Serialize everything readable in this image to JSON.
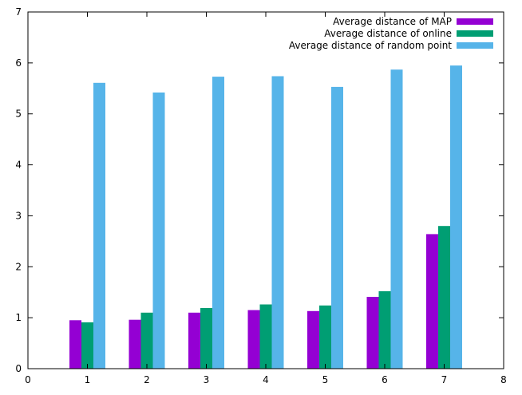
{
  "chart_data": {
    "type": "bar",
    "title": "",
    "xlabel": "",
    "ylabel": "",
    "x": [
      1,
      2,
      3,
      4,
      5,
      6,
      7
    ],
    "xlim": [
      0,
      8
    ],
    "ylim": [
      0,
      7
    ],
    "xticks": [
      "0",
      "1",
      "2",
      "3",
      "4",
      "5",
      "6",
      "7",
      "8"
    ],
    "yticks": [
      "0",
      "1",
      "2",
      "3",
      "4",
      "5",
      "6",
      "7"
    ],
    "grid": false,
    "legend_position": "top-right",
    "series": [
      {
        "name": "Average distance of MAP",
        "color": "#9400d3",
        "values": [
          0.95,
          0.96,
          1.1,
          1.15,
          1.13,
          1.41,
          2.64
        ]
      },
      {
        "name": "Average distance of online",
        "color": "#009e73",
        "values": [
          0.91,
          1.1,
          1.19,
          1.26,
          1.24,
          1.52,
          2.8
        ]
      },
      {
        "name": "Average distance of random point",
        "color": "#56b4e9",
        "values": [
          5.61,
          5.42,
          5.73,
          5.74,
          5.53,
          5.87,
          5.95
        ]
      }
    ]
  }
}
